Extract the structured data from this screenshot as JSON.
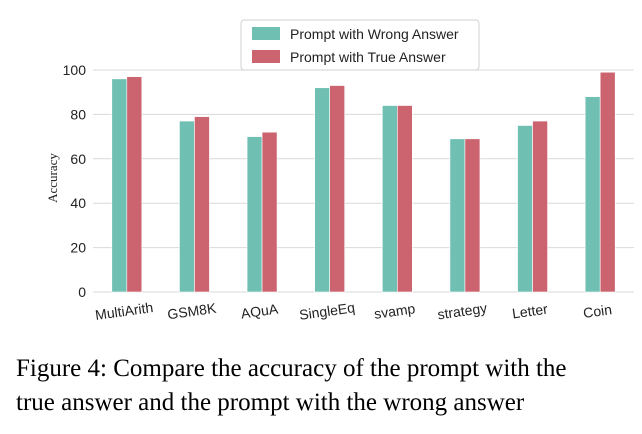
{
  "chart_data": {
    "type": "bar",
    "categories": [
      "MultiArith",
      "GSM8K",
      "AQuA",
      "SingleEq",
      "svamp",
      "strategy",
      "Letter",
      "Coin"
    ],
    "series": [
      {
        "name": "Prompt with Wrong Answer",
        "values": [
          96,
          77,
          70,
          92,
          84,
          69,
          75,
          88
        ]
      },
      {
        "name": "Prompt with True Answer",
        "values": [
          97,
          79,
          72,
          93,
          84,
          69,
          77,
          99
        ]
      }
    ],
    "colors": [
      "#6fbfb3",
      "#cc6470"
    ],
    "ylabel": "Accuracy",
    "xlabel": "",
    "ylim": [
      0,
      100
    ],
    "yticks": [
      0,
      20,
      40,
      60,
      80,
      100
    ],
    "grid": true,
    "legend_position": "top-center"
  },
  "caption": {
    "line1": "Figure 4: Compare the accuracy of the prompt with the",
    "line2": "true answer and the prompt with the wrong answer"
  }
}
